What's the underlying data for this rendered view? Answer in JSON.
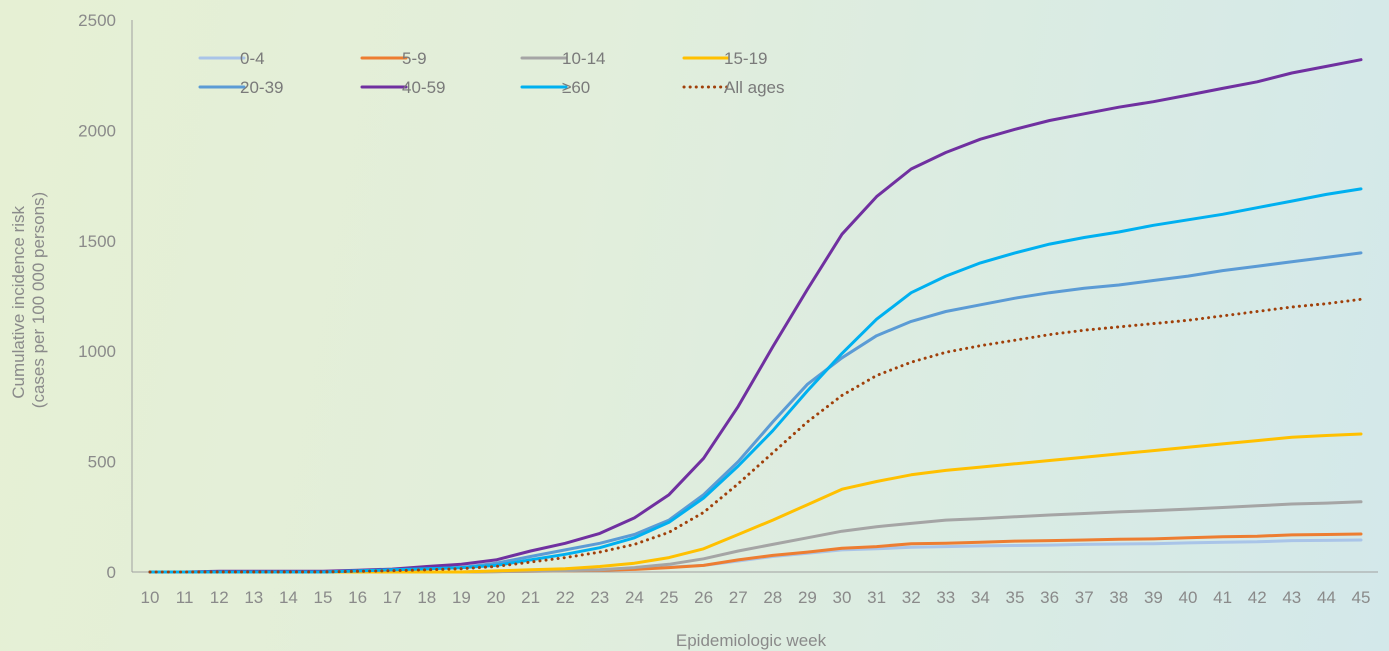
{
  "chart_data": {
    "type": "line",
    "xlabel": "Epidemiologic week",
    "ylabel": [
      "Cumulative incidence risk",
      "(cases per 100 000 persons)"
    ],
    "ylim": [
      0,
      2500
    ],
    "yticks": [
      0,
      500,
      1000,
      1500,
      2000,
      2500
    ],
    "grid": false,
    "legend_position": "top-left",
    "x": [
      10,
      11,
      12,
      13,
      14,
      15,
      16,
      17,
      18,
      19,
      20,
      21,
      22,
      23,
      24,
      25,
      26,
      27,
      28,
      29,
      30,
      31,
      32,
      33,
      34,
      35,
      36,
      37,
      38,
      39,
      40,
      41,
      42,
      43,
      44,
      45
    ],
    "series": [
      {
        "name": "0-4",
        "color": "#a9c4e8",
        "style": "solid",
        "values": [
          0,
          0,
          0,
          0,
          0,
          0,
          0,
          0,
          0,
          0,
          2,
          4,
          6,
          10,
          15,
          22,
          30,
          50,
          70,
          85,
          100,
          105,
          112,
          115,
          118,
          120,
          122,
          125,
          127,
          128,
          132,
          135,
          137,
          142,
          143,
          145
        ]
      },
      {
        "name": "5-9",
        "color": "#ed7d31",
        "style": "solid",
        "values": [
          0,
          0,
          0,
          0,
          0,
          0,
          0,
          0,
          0,
          0,
          2,
          3,
          5,
          8,
          12,
          20,
          30,
          55,
          75,
          90,
          108,
          115,
          128,
          130,
          135,
          140,
          142,
          145,
          148,
          150,
          155,
          160,
          162,
          168,
          170,
          172
        ]
      },
      {
        "name": "10-14",
        "color": "#a5a5a5",
        "style": "solid",
        "values": [
          0,
          0,
          0,
          0,
          0,
          0,
          0,
          0,
          0,
          0,
          2,
          4,
          6,
          10,
          20,
          35,
          60,
          95,
          125,
          155,
          185,
          205,
          220,
          235,
          242,
          250,
          258,
          265,
          272,
          278,
          285,
          292,
          300,
          308,
          312,
          318
        ]
      },
      {
        "name": "15-19",
        "color": "#ffc000",
        "style": "solid",
        "values": [
          0,
          0,
          0,
          0,
          0,
          0,
          0,
          0,
          0,
          0,
          5,
          10,
          15,
          25,
          40,
          65,
          105,
          170,
          235,
          305,
          375,
          410,
          440,
          460,
          475,
          490,
          505,
          520,
          535,
          550,
          565,
          580,
          595,
          610,
          618,
          625
        ]
      },
      {
        "name": "20-39",
        "color": "#5b9bd5",
        "style": "solid",
        "values": [
          0,
          0,
          0,
          0,
          0,
          0,
          5,
          10,
          15,
          20,
          40,
          70,
          100,
          130,
          170,
          235,
          350,
          500,
          680,
          850,
          970,
          1070,
          1135,
          1180,
          1210,
          1240,
          1265,
          1285,
          1300,
          1320,
          1340,
          1365,
          1385,
          1405,
          1425,
          1445
        ]
      },
      {
        "name": "40-59",
        "color": "#7030a0",
        "style": "solid",
        "values": [
          0,
          0,
          3,
          3,
          3,
          3,
          8,
          13,
          25,
          35,
          55,
          95,
          130,
          175,
          245,
          350,
          515,
          750,
          1020,
          1280,
          1530,
          1700,
          1825,
          1900,
          1960,
          2005,
          2045,
          2075,
          2105,
          2130,
          2160,
          2190,
          2220,
          2260,
          2290,
          2320
        ]
      },
      {
        "name": "≥60",
        "color": "#00b0f0",
        "style": "solid",
        "values": [
          0,
          0,
          0,
          0,
          0,
          0,
          5,
          10,
          15,
          20,
          30,
          55,
          80,
          110,
          155,
          225,
          335,
          480,
          640,
          820,
          990,
          1145,
          1265,
          1340,
          1400,
          1445,
          1485,
          1515,
          1540,
          1570,
          1595,
          1620,
          1650,
          1680,
          1710,
          1735
        ]
      },
      {
        "name": "All ages",
        "color": "#a0400a",
        "style": "dotted",
        "values": [
          0,
          0,
          0,
          0,
          0,
          0,
          3,
          6,
          10,
          15,
          25,
          45,
          65,
          90,
          125,
          180,
          270,
          400,
          540,
          680,
          800,
          890,
          950,
          995,
          1025,
          1050,
          1075,
          1095,
          1110,
          1125,
          1140,
          1160,
          1180,
          1200,
          1215,
          1235
        ]
      }
    ]
  }
}
